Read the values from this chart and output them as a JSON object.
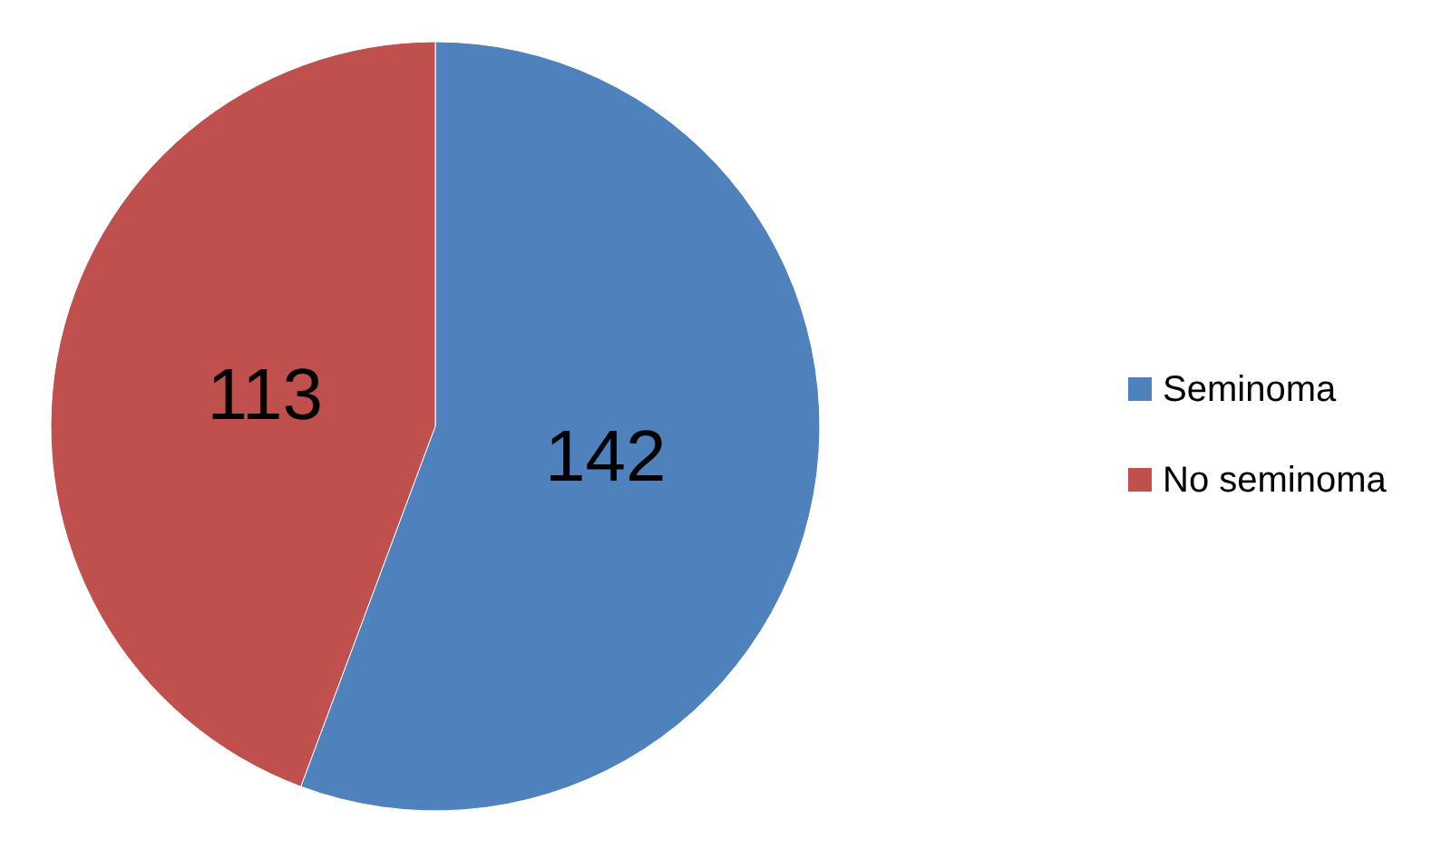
{
  "chart_data": {
    "type": "pie",
    "categories": [
      "Seminoma",
      "No seminoma"
    ],
    "values": [
      142,
      113
    ],
    "colors": [
      "#4f81bd",
      "#c0504d"
    ],
    "data_labels": true,
    "legend": "right"
  }
}
